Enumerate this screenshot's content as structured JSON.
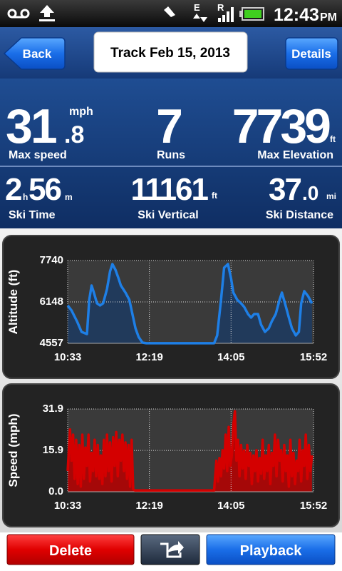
{
  "status_bar": {
    "network_1": "E",
    "network_2": "R",
    "time": "12:43",
    "period": "PM"
  },
  "header": {
    "back": "Back",
    "title": "Track Feb 15, 2013",
    "details": "Details"
  },
  "stats": {
    "max_speed": {
      "whole": "31",
      "fraction": ".8",
      "unit": "mph",
      "label": "Max speed"
    },
    "runs": {
      "value": "7",
      "label": "Runs"
    },
    "max_elevation": {
      "value": "7739",
      "unit": "ft",
      "label": "Max Elevation"
    },
    "ski_time": {
      "hours": "2",
      "hours_unit": "h",
      "minutes": "56",
      "minutes_unit": "m",
      "label": "Ski Time"
    },
    "ski_vertical": {
      "value": "11161",
      "unit": "ft",
      "label": "Ski Vertical"
    },
    "ski_distance": {
      "whole": "37",
      "fraction": ".0",
      "unit": "mi",
      "label": "Ski Distance"
    }
  },
  "chart_data": [
    {
      "type": "area",
      "y_label": "Altitude (ft)",
      "color": "#1e7fe6",
      "fill": "#1d3b62",
      "grid": true,
      "xlim": [
        633,
        952
      ],
      "xticks": [
        {
          "value": 633,
          "label": "10:33"
        },
        {
          "value": 739,
          "label": "12:19"
        },
        {
          "value": 845,
          "label": "14:05"
        },
        {
          "value": 952,
          "label": "15:52"
        }
      ],
      "ylim": [
        4557,
        7740
      ],
      "yticks": [
        4557,
        6148,
        7740
      ],
      "x": [
        633,
        638,
        645,
        651,
        658,
        661,
        664,
        667,
        671,
        675,
        679,
        684,
        688,
        691,
        695,
        699,
        702,
        708,
        713,
        717,
        721,
        725,
        730,
        735,
        823,
        827,
        832,
        836,
        841,
        845,
        848,
        853,
        858,
        862,
        867,
        871,
        875,
        880,
        884,
        889,
        894,
        898,
        903,
        908,
        911,
        915,
        920,
        924,
        929,
        933,
        936,
        940,
        945,
        950
      ],
      "values": [
        6012,
        5820,
        5408,
        4997,
        4915,
        6231,
        6780,
        6506,
        6094,
        6012,
        6094,
        6643,
        7329,
        7603,
        7383,
        7054,
        6780,
        6506,
        6231,
        5683,
        5134,
        4805,
        4585,
        4560,
        4560,
        4860,
        6231,
        7466,
        7603,
        7054,
        6506,
        6231,
        6094,
        5957,
        5683,
        5546,
        5683,
        5683,
        5271,
        4997,
        5134,
        5408,
        5683,
        6231,
        6506,
        6094,
        5546,
        5134,
        4860,
        4997,
        6094,
        6561,
        6369,
        6094
      ]
    },
    {
      "type": "area",
      "y_label": "Speed (mph)",
      "color": "#d40000",
      "fill": "#b80000",
      "grid": true,
      "xlim": [
        633,
        952
      ],
      "xticks": [
        {
          "value": 633,
          "label": "10:33"
        },
        {
          "value": 739,
          "label": "12:19"
        },
        {
          "value": 845,
          "label": "14:05"
        },
        {
          "value": 952,
          "label": "15:52"
        }
      ],
      "ylim": [
        0,
        31.9
      ],
      "yticks": [
        {
          "value": 0,
          "label": "0.0"
        },
        15.9,
        31.9
      ],
      "x": [
        633,
        636,
        638,
        640,
        642,
        644,
        646,
        648,
        650,
        652,
        654,
        656,
        658,
        660,
        662,
        664,
        666,
        668,
        670,
        672,
        674,
        676,
        678,
        680,
        682,
        684,
        686,
        688,
        690,
        692,
        694,
        696,
        698,
        700,
        702,
        704,
        706,
        708,
        710,
        712,
        714,
        716,
        718,
        720,
        780,
        823,
        826,
        828,
        830,
        832,
        834,
        836,
        838,
        840,
        842,
        844,
        846,
        848,
        850,
        852,
        854,
        856,
        858,
        860,
        862,
        864,
        866,
        868,
        870,
        872,
        874,
        876,
        878,
        880,
        882,
        884,
        886,
        888,
        890,
        892,
        894,
        896,
        898,
        900,
        902,
        904,
        906,
        908,
        910,
        912,
        914,
        916,
        918,
        920,
        922,
        924,
        926,
        928,
        930,
        932,
        934,
        936,
        938,
        940,
        942,
        944,
        946,
        948,
        950
      ],
      "values": [
        8,
        24,
        12,
        22,
        5,
        20,
        3,
        18,
        2,
        22,
        5,
        17,
        10,
        22,
        4,
        15,
        8,
        20,
        6,
        18,
        5,
        14,
        3,
        20,
        6,
        22,
        8,
        19,
        4,
        21,
        10,
        23,
        6,
        20,
        12,
        22,
        8,
        19,
        5,
        18,
        2,
        20,
        1,
        0.5,
        0.5,
        0.5,
        12,
        4,
        13,
        6,
        16,
        9,
        22,
        8,
        25,
        10,
        14,
        26,
        31,
        12,
        20,
        6,
        18,
        9,
        16,
        5,
        18,
        10,
        15,
        3,
        14,
        8,
        16,
        4,
        13,
        7,
        20,
        5,
        14,
        8,
        18,
        3,
        15,
        10,
        22,
        6,
        20,
        12,
        16,
        4,
        18,
        8,
        14,
        2,
        20,
        6,
        15,
        3,
        12,
        8,
        20,
        4,
        16,
        10,
        22,
        5,
        18,
        8,
        14
      ]
    }
  ],
  "buttons": {
    "delete": "Delete",
    "playback": "Playback"
  }
}
